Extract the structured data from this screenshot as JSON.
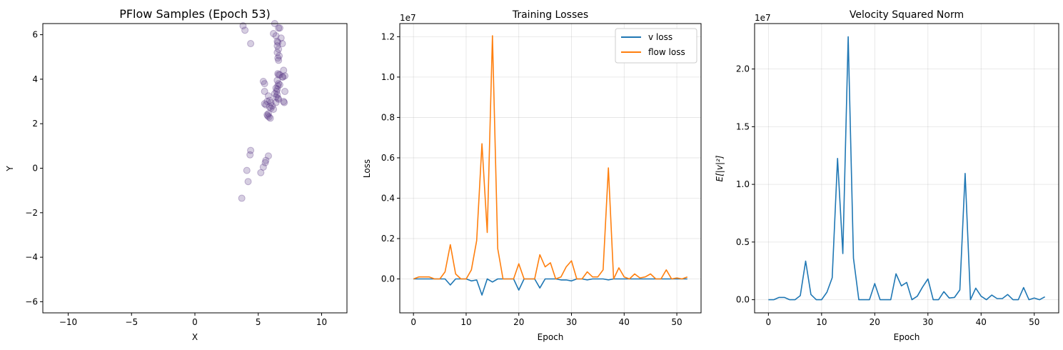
{
  "chart_data": [
    {
      "type": "scatter",
      "title": "PFlow Samples (Epoch 53)",
      "xlabel": "X",
      "ylabel": "Y",
      "xlim": [
        -12,
        12
      ],
      "ylim": [
        -6.5,
        6.5
      ],
      "xticks": [
        -10,
        -5,
        0,
        5,
        10
      ],
      "yticks": [
        -6,
        -4,
        -2,
        0,
        2,
        4,
        6
      ],
      "xtick_labels": [
        "−10",
        "−5",
        "0",
        "5",
        "10"
      ],
      "ytick_labels": [
        "−6",
        "−4",
        "−2",
        "0",
        "2",
        "4",
        "6"
      ],
      "grid": false,
      "point_color": "#5b3a86",
      "point_alpha": 0.25,
      "points": [
        [
          3.8,
          6.4
        ],
        [
          3.95,
          6.2
        ],
        [
          4.4,
          5.6
        ],
        [
          6.3,
          6.5
        ],
        [
          6.6,
          6.3
        ],
        [
          6.7,
          6.3
        ],
        [
          6.2,
          6.05
        ],
        [
          6.4,
          5.95
        ],
        [
          6.8,
          5.85
        ],
        [
          6.5,
          5.7
        ],
        [
          6.55,
          5.65
        ],
        [
          6.9,
          5.6
        ],
        [
          6.5,
          5.5
        ],
        [
          6.6,
          5.35
        ],
        [
          6.5,
          5.2
        ],
        [
          6.65,
          5.05
        ],
        [
          6.55,
          4.95
        ],
        [
          6.6,
          4.85
        ],
        [
          7.0,
          4.4
        ],
        [
          6.55,
          4.25
        ],
        [
          6.6,
          4.2
        ],
        [
          6.7,
          4.2
        ],
        [
          7.1,
          4.15
        ],
        [
          6.9,
          4.1
        ],
        [
          6.95,
          4.1
        ],
        [
          6.5,
          3.95
        ],
        [
          5.4,
          3.9
        ],
        [
          5.5,
          3.8
        ],
        [
          6.6,
          3.8
        ],
        [
          6.7,
          3.75
        ],
        [
          6.55,
          3.7
        ],
        [
          6.4,
          3.6
        ],
        [
          6.5,
          3.55
        ],
        [
          5.5,
          3.45
        ],
        [
          6.45,
          3.45
        ],
        [
          7.1,
          3.45
        ],
        [
          6.3,
          3.35
        ],
        [
          6.5,
          3.3
        ],
        [
          5.8,
          3.25
        ],
        [
          6.4,
          3.2
        ],
        [
          6.55,
          3.15
        ],
        [
          6.6,
          3.1
        ],
        [
          5.9,
          3.05
        ],
        [
          5.7,
          3.0
        ],
        [
          6.0,
          2.95
        ],
        [
          6.4,
          2.95
        ],
        [
          7.0,
          3.0
        ],
        [
          7.05,
          2.95
        ],
        [
          5.5,
          2.9
        ],
        [
          5.6,
          2.85
        ],
        [
          6.1,
          2.8
        ],
        [
          5.9,
          2.75
        ],
        [
          6.0,
          2.7
        ],
        [
          6.2,
          2.65
        ],
        [
          5.8,
          2.45
        ],
        [
          5.7,
          2.4
        ],
        [
          5.75,
          2.35
        ],
        [
          5.85,
          2.3
        ],
        [
          5.95,
          2.25
        ],
        [
          4.4,
          0.8
        ],
        [
          4.35,
          0.6
        ],
        [
          5.8,
          0.55
        ],
        [
          5.6,
          0.35
        ],
        [
          5.55,
          0.25
        ],
        [
          5.4,
          0.05
        ],
        [
          4.1,
          -0.1
        ],
        [
          5.2,
          -0.2
        ],
        [
          4.2,
          -0.6
        ],
        [
          3.7,
          -1.35
        ]
      ]
    },
    {
      "type": "line",
      "title": "Training Losses",
      "xlabel": "Epoch",
      "ylabel": "Loss",
      "scale_label": "1e7",
      "xlim": [
        -2.6,
        54.6
      ],
      "ylim": [
        -0.168,
        1.265
      ],
      "xticks": [
        0,
        10,
        20,
        30,
        40,
        50
      ],
      "yticks": [
        0.0,
        0.2,
        0.4,
        0.6,
        0.8,
        1.0,
        1.2
      ],
      "xtick_labels": [
        "0",
        "10",
        "20",
        "30",
        "40",
        "50"
      ],
      "ytick_labels": [
        "0.0",
        "0.2",
        "0.4",
        "0.6",
        "0.8",
        "1.0",
        "1.2"
      ],
      "grid": true,
      "legend_position": "top-right",
      "x": [
        0,
        1,
        2,
        3,
        4,
        5,
        6,
        7,
        8,
        9,
        10,
        11,
        12,
        13,
        14,
        15,
        16,
        17,
        18,
        19,
        20,
        21,
        22,
        23,
        24,
        25,
        26,
        27,
        28,
        29,
        30,
        31,
        32,
        33,
        34,
        35,
        36,
        37,
        38,
        39,
        40,
        41,
        42,
        43,
        44,
        45,
        46,
        47,
        48,
        49,
        50,
        51,
        52
      ],
      "series": [
        {
          "name": "v loss",
          "color": "#1f77b4",
          "values": [
            0,
            0,
            0,
            0,
            0,
            0,
            0,
            -0.03,
            0,
            0,
            0,
            -0.01,
            -0.005,
            -0.08,
            0,
            -0.015,
            0,
            0,
            0,
            0,
            -0.055,
            0,
            0,
            0,
            -0.045,
            0,
            0,
            0,
            -0.005,
            -0.005,
            -0.01,
            0,
            0,
            -0.005,
            0,
            0,
            0,
            -0.005,
            0,
            0,
            0,
            0,
            0,
            0,
            0,
            0,
            0,
            0,
            0,
            0,
            0,
            0,
            0
          ]
        },
        {
          "name": "flow loss",
          "color": "#ff7f0e",
          "values": [
            0,
            0.01,
            0.01,
            0.01,
            0,
            0,
            0.035,
            0.17,
            0.025,
            0,
            0,
            0.045,
            0.19,
            0.67,
            0.23,
            1.205,
            0.15,
            0,
            0,
            0,
            0.075,
            0,
            0,
            0,
            0.12,
            0.06,
            0.08,
            0,
            0.01,
            0.06,
            0.09,
            0,
            0,
            0.035,
            0.01,
            0.01,
            0.045,
            0.55,
            0,
            0.055,
            0.01,
            0,
            0.025,
            0.005,
            0.01,
            0.025,
            0,
            0,
            0.045,
            0,
            0.005,
            0,
            0.01
          ]
        }
      ]
    },
    {
      "type": "line",
      "title": "Velocity Squared Norm",
      "xlabel": "Epoch",
      "ylabel": "E[|v|²]",
      "scale_label": "1e7",
      "xlim": [
        -2.6,
        54.6
      ],
      "ylim": [
        -0.114,
        2.394
      ],
      "xticks": [
        0,
        10,
        20,
        30,
        40,
        50
      ],
      "yticks": [
        0.0,
        0.5,
        1.0,
        1.5,
        2.0
      ],
      "xtick_labels": [
        "0",
        "10",
        "20",
        "30",
        "40",
        "50"
      ],
      "ytick_labels": [
        "0.0",
        "0.5",
        "1.0",
        "1.5",
        "2.0"
      ],
      "grid": true,
      "x": [
        0,
        1,
        2,
        3,
        4,
        5,
        6,
        7,
        8,
        9,
        10,
        11,
        12,
        13,
        14,
        15,
        16,
        17,
        18,
        19,
        20,
        21,
        22,
        23,
        24,
        25,
        26,
        27,
        28,
        29,
        30,
        31,
        32,
        33,
        34,
        35,
        36,
        37,
        38,
        39,
        40,
        41,
        42,
        43,
        44,
        45,
        46,
        47,
        48,
        49,
        50,
        51,
        52
      ],
      "series": [
        {
          "color": "#1f77b4",
          "values": [
            0,
            0,
            0.02,
            0.02,
            0,
            0,
            0.035,
            0.335,
            0.045,
            0,
            0,
            0.065,
            0.19,
            1.225,
            0.4,
            2.28,
            0.36,
            0,
            0,
            0,
            0.14,
            0,
            0,
            0,
            0.225,
            0.12,
            0.15,
            0,
            0.03,
            0.11,
            0.18,
            0,
            0,
            0.07,
            0.015,
            0.02,
            0.085,
            1.095,
            0,
            0.1,
            0.03,
            0,
            0.04,
            0.01,
            0.01,
            0.045,
            0,
            0,
            0.105,
            0,
            0.015,
            0,
            0.025
          ]
        }
      ]
    }
  ]
}
